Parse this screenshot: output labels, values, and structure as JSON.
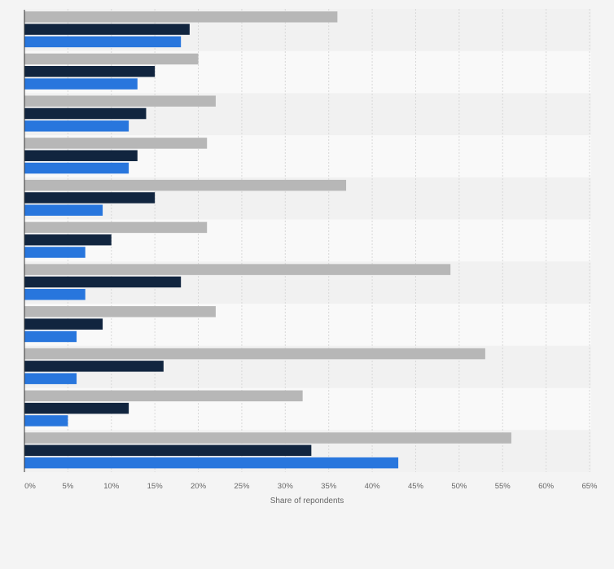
{
  "chart_data": {
    "type": "bar",
    "orientation": "horizontal",
    "categories": [
      "",
      "",
      "",
      "",
      "",
      "",
      "",
      "",
      "",
      "",
      ""
    ],
    "series": [
      {
        "color": "#b7b7b7",
        "values": [
          36,
          20,
          22,
          21,
          37,
          21,
          49,
          22,
          53,
          32,
          56
        ]
      },
      {
        "color": "#11253f",
        "values": [
          19,
          15,
          14,
          13,
          15,
          10,
          18,
          9,
          16,
          12,
          33
        ]
      },
      {
        "color": "#2876dd",
        "values": [
          18,
          13,
          12,
          12,
          9,
          7,
          7,
          6,
          6,
          5,
          43
        ]
      }
    ],
    "xlabel": "Share of repondents",
    "xlim": [
      0,
      65
    ],
    "xticks": [
      "0%",
      "5%",
      "10%",
      "15%",
      "20%",
      "25%",
      "30%",
      "35%",
      "40%",
      "45%",
      "50%",
      "55%",
      "60%",
      "65%"
    ],
    "grid": true,
    "legend": "none"
  }
}
